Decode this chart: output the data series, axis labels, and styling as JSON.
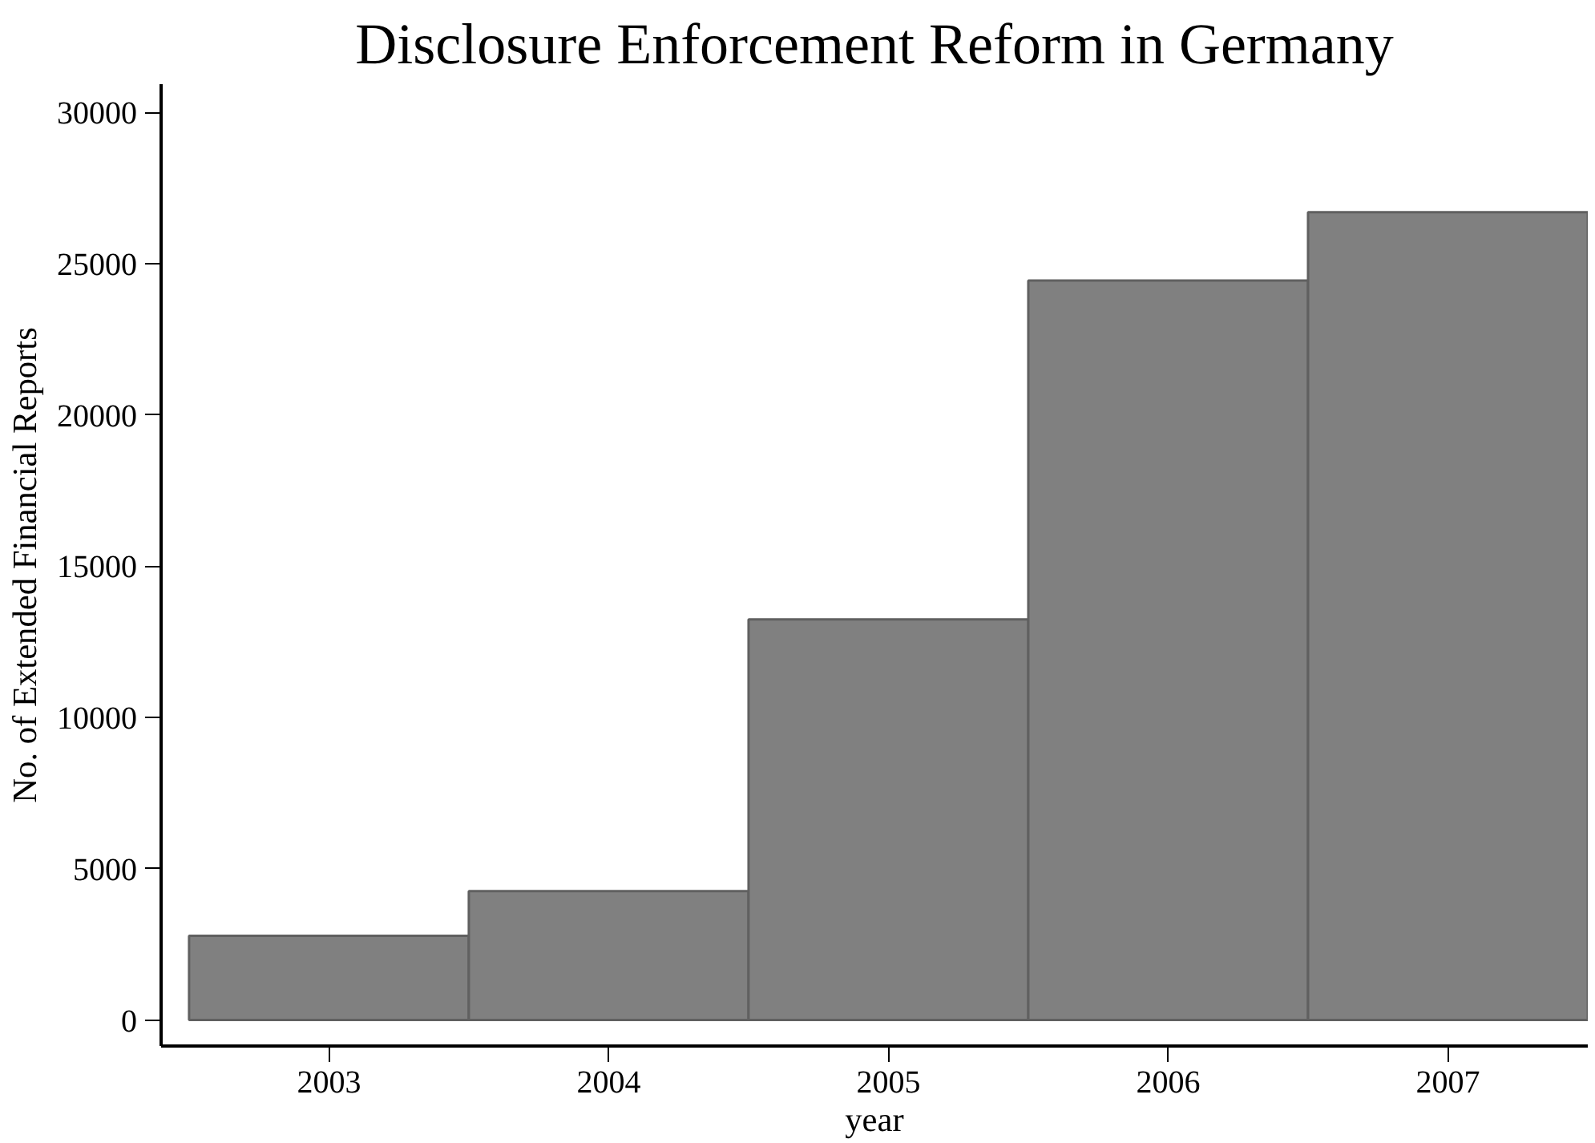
{
  "chart_data": {
    "type": "bar",
    "title": "Disclosure Enforcement Reform in Germany",
    "xlabel": "year",
    "ylabel": "No. of Extended Financial Reports",
    "x": [
      2003,
      2004,
      2005,
      2006,
      2007
    ],
    "values": [
      2780,
      4260,
      13240,
      24440,
      26700
    ],
    "color": "#808080",
    "xlim": [
      2002.4,
      2007.5
    ],
    "xticks": [
      2003,
      2004,
      2005,
      2006,
      2007
    ],
    "ylim": [
      -860,
      30930
    ],
    "yticks": [
      0,
      5000,
      10000,
      15000,
      20000,
      25000,
      30000
    ],
    "grid": false
  }
}
